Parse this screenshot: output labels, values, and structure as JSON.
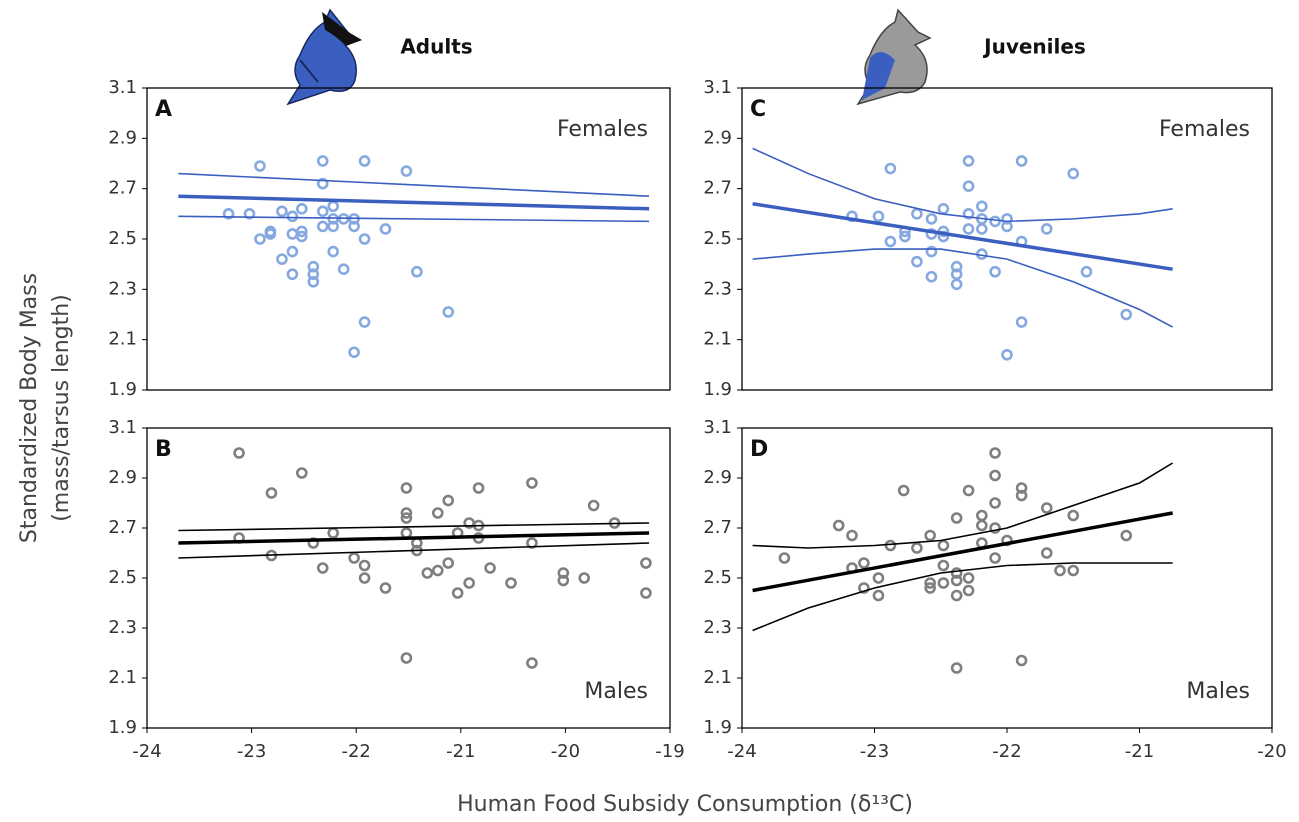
{
  "ylabel": [
    "Standardized Body Mass",
    "(mass/tarsus length)"
  ],
  "xlabel": "Human Food Subsidy Consumption (δ¹³C)",
  "chart_data": [
    {
      "type": "scatter",
      "title": "Adults",
      "panel_label": "A",
      "group_label": "Females",
      "color": "#86a8e0",
      "line_color": "#3a5fc0",
      "x": [
        -23.22,
        -23.02,
        -22.92,
        -22.92,
        -22.82,
        -22.82,
        -22.71,
        -22.71,
        -22.61,
        -22.61,
        -22.61,
        -22.61,
        -22.52,
        -22.52,
        -22.52,
        -22.41,
        -22.41,
        -22.41,
        -22.32,
        -22.32,
        -22.32,
        -22.22,
        -22.22,
        -22.22,
        -22.22,
        -22.12,
        -22.12,
        -22.02,
        -22.02,
        -22.02,
        -21.92,
        -21.92,
        -21.92,
        -21.72,
        -21.52,
        -21.42,
        -21.12,
        -22.32
      ],
      "values": [
        2.6,
        2.6,
        2.79,
        2.5,
        2.52,
        2.53,
        2.61,
        2.42,
        2.59,
        2.52,
        2.45,
        2.36,
        2.53,
        2.62,
        2.51,
        2.39,
        2.36,
        2.33,
        2.81,
        2.72,
        2.61,
        2.63,
        2.58,
        2.55,
        2.45,
        2.58,
        2.38,
        2.58,
        2.55,
        2.05,
        2.81,
        2.5,
        2.17,
        2.54,
        2.77,
        2.37,
        2.21,
        2.55
      ],
      "fit": {
        "x": [
          -23.7,
          -19.2
        ],
        "values": [
          2.67,
          2.62
        ]
      },
      "ci": [
        {
          "x": [
            -23.7,
            -19.2
          ],
          "values": [
            2.76,
            2.67
          ]
        },
        {
          "x": [
            -23.7,
            -19.2
          ],
          "values": [
            2.59,
            2.57
          ]
        }
      ],
      "xlim": [
        -24,
        -19
      ],
      "ylim": [
        1.9,
        3.1
      ],
      "yticks": [
        1.9,
        2.1,
        2.3,
        2.5,
        2.7,
        2.9,
        3.1
      ]
    },
    {
      "type": "scatter",
      "panel_label": "B",
      "group_label": "Males",
      "color": "#7f7f7f",
      "line_color": "#000000",
      "x": [
        -23.12,
        -23.12,
        -22.81,
        -22.81,
        -22.52,
        -22.41,
        -22.32,
        -22.22,
        -22.02,
        -21.92,
        -21.92,
        -21.72,
        -21.52,
        -21.52,
        -21.52,
        -21.52,
        -21.52,
        -21.42,
        -21.42,
        -21.32,
        -21.22,
        -21.22,
        -21.12,
        -21.12,
        -21.03,
        -21.03,
        -20.92,
        -20.92,
        -20.83,
        -20.83,
        -20.83,
        -20.72,
        -20.52,
        -20.32,
        -20.32,
        -20.32,
        -20.02,
        -20.02,
        -19.82,
        -19.73,
        -19.53,
        -19.23,
        -19.23
      ],
      "values": [
        3.0,
        2.66,
        2.84,
        2.59,
        2.92,
        2.64,
        2.54,
        2.68,
        2.58,
        2.55,
        2.5,
        2.46,
        2.86,
        2.76,
        2.74,
        2.68,
        2.18,
        2.64,
        2.61,
        2.52,
        2.76,
        2.53,
        2.81,
        2.56,
        2.68,
        2.44,
        2.72,
        2.48,
        2.86,
        2.71,
        2.66,
        2.54,
        2.48,
        2.88,
        2.64,
        2.16,
        2.52,
        2.49,
        2.5,
        2.79,
        2.72,
        2.56,
        2.44
      ],
      "fit": {
        "x": [
          -23.7,
          -19.2
        ],
        "values": [
          2.64,
          2.68
        ]
      },
      "ci": [
        {
          "x": [
            -23.7,
            -19.2
          ],
          "values": [
            2.69,
            2.72
          ]
        },
        {
          "x": [
            -23.7,
            -19.2
          ],
          "values": [
            2.58,
            2.64
          ]
        }
      ],
      "xlim": [
        -24,
        -19
      ],
      "ylim": [
        1.9,
        3.1
      ],
      "xticks": [
        -24,
        -23,
        -22,
        -21,
        -20,
        -19
      ],
      "yticks": [
        1.9,
        2.1,
        2.3,
        2.5,
        2.7,
        2.9,
        3.1
      ]
    },
    {
      "type": "scatter",
      "title": "Juveniles",
      "panel_label": "C",
      "group_label": "Females",
      "color": "#86a8e0",
      "line_color": "#3a5fc0",
      "x": [
        -23.17,
        -22.97,
        -22.88,
        -22.88,
        -22.77,
        -22.77,
        -22.68,
        -22.68,
        -22.57,
        -22.57,
        -22.57,
        -22.57,
        -22.48,
        -22.48,
        -22.48,
        -22.38,
        -22.38,
        -22.38,
        -22.29,
        -22.29,
        -22.29,
        -22.19,
        -22.19,
        -22.19,
        -22.19,
        -22.09,
        -22.09,
        -22.0,
        -22.0,
        -22.0,
        -21.89,
        -21.89,
        -21.89,
        -21.7,
        -21.5,
        -21.4,
        -21.1,
        -22.29
      ],
      "values": [
        2.59,
        2.59,
        2.78,
        2.49,
        2.51,
        2.53,
        2.6,
        2.41,
        2.58,
        2.52,
        2.45,
        2.35,
        2.62,
        2.51,
        2.53,
        2.39,
        2.36,
        2.32,
        2.81,
        2.71,
        2.6,
        2.63,
        2.58,
        2.54,
        2.44,
        2.57,
        2.37,
        2.58,
        2.55,
        2.04,
        2.81,
        2.49,
        2.17,
        2.54,
        2.76,
        2.37,
        2.2,
        2.54
      ],
      "fit": {
        "x": [
          -23.92,
          -20.75
        ],
        "values": [
          2.64,
          2.38
        ]
      },
      "ci": [
        {
          "x": [
            -23.92,
            -23.5,
            -23,
            -22.5,
            -22,
            -21.5,
            -21,
            -20.75
          ],
          "values": [
            2.86,
            2.76,
            2.66,
            2.6,
            2.57,
            2.58,
            2.6,
            2.62
          ]
        },
        {
          "x": [
            -23.92,
            -23.5,
            -23,
            -22.5,
            -22,
            -21.5,
            -21,
            -20.75
          ],
          "values": [
            2.42,
            2.44,
            2.46,
            2.46,
            2.42,
            2.33,
            2.22,
            2.15
          ]
        }
      ],
      "xlim": [
        -24,
        -20
      ],
      "ylim": [
        1.9,
        3.1
      ],
      "yticks": [
        1.9,
        2.1,
        2.3,
        2.5,
        2.7,
        2.9,
        3.1
      ]
    },
    {
      "type": "scatter",
      "panel_label": "D",
      "group_label": "Males",
      "color": "#7f7f7f",
      "line_color": "#000000",
      "x": [
        -23.68,
        -23.27,
        -23.17,
        -23.17,
        -23.08,
        -23.08,
        -22.97,
        -22.97,
        -22.88,
        -22.78,
        -22.68,
        -22.58,
        -22.58,
        -22.58,
        -22.48,
        -22.48,
        -22.48,
        -22.38,
        -22.38,
        -22.38,
        -22.38,
        -22.38,
        -22.29,
        -22.29,
        -22.29,
        -22.19,
        -22.19,
        -22.19,
        -22.09,
        -22.09,
        -22.09,
        -22.09,
        -22.09,
        -22.0,
        -21.89,
        -21.89,
        -21.89,
        -21.7,
        -21.7,
        -21.6,
        -21.5,
        -21.5,
        -21.1
      ],
      "values": [
        2.58,
        2.71,
        2.67,
        2.54,
        2.56,
        2.46,
        2.5,
        2.43,
        2.63,
        2.85,
        2.62,
        2.67,
        2.48,
        2.46,
        2.63,
        2.55,
        2.48,
        2.74,
        2.52,
        2.49,
        2.43,
        2.14,
        2.85,
        2.5,
        2.45,
        2.75,
        2.71,
        2.64,
        3.0,
        2.91,
        2.8,
        2.7,
        2.58,
        2.65,
        2.86,
        2.83,
        2.17,
        2.78,
        2.6,
        2.53,
        2.75,
        2.53,
        2.67
      ],
      "fit": {
        "x": [
          -23.92,
          -20.75
        ],
        "values": [
          2.45,
          2.76
        ]
      },
      "ci": [
        {
          "x": [
            -23.92,
            -23.5,
            -23,
            -22.5,
            -22,
            -21.5,
            -21,
            -20.75
          ],
          "values": [
            2.63,
            2.62,
            2.63,
            2.65,
            2.7,
            2.79,
            2.88,
            2.96
          ]
        },
        {
          "x": [
            -23.92,
            -23.5,
            -23,
            -22.5,
            -22,
            -21.5,
            -21,
            -20.75
          ],
          "values": [
            2.29,
            2.38,
            2.46,
            2.52,
            2.55,
            2.56,
            2.56,
            2.56
          ]
        }
      ],
      "xlim": [
        -24,
        -20
      ],
      "ylim": [
        1.9,
        3.1
      ],
      "xticks": [
        -24,
        -23,
        -22,
        -21,
        -20
      ],
      "yticks": [
        1.9,
        2.1,
        2.3,
        2.5,
        2.7,
        2.9,
        3.1
      ]
    }
  ]
}
